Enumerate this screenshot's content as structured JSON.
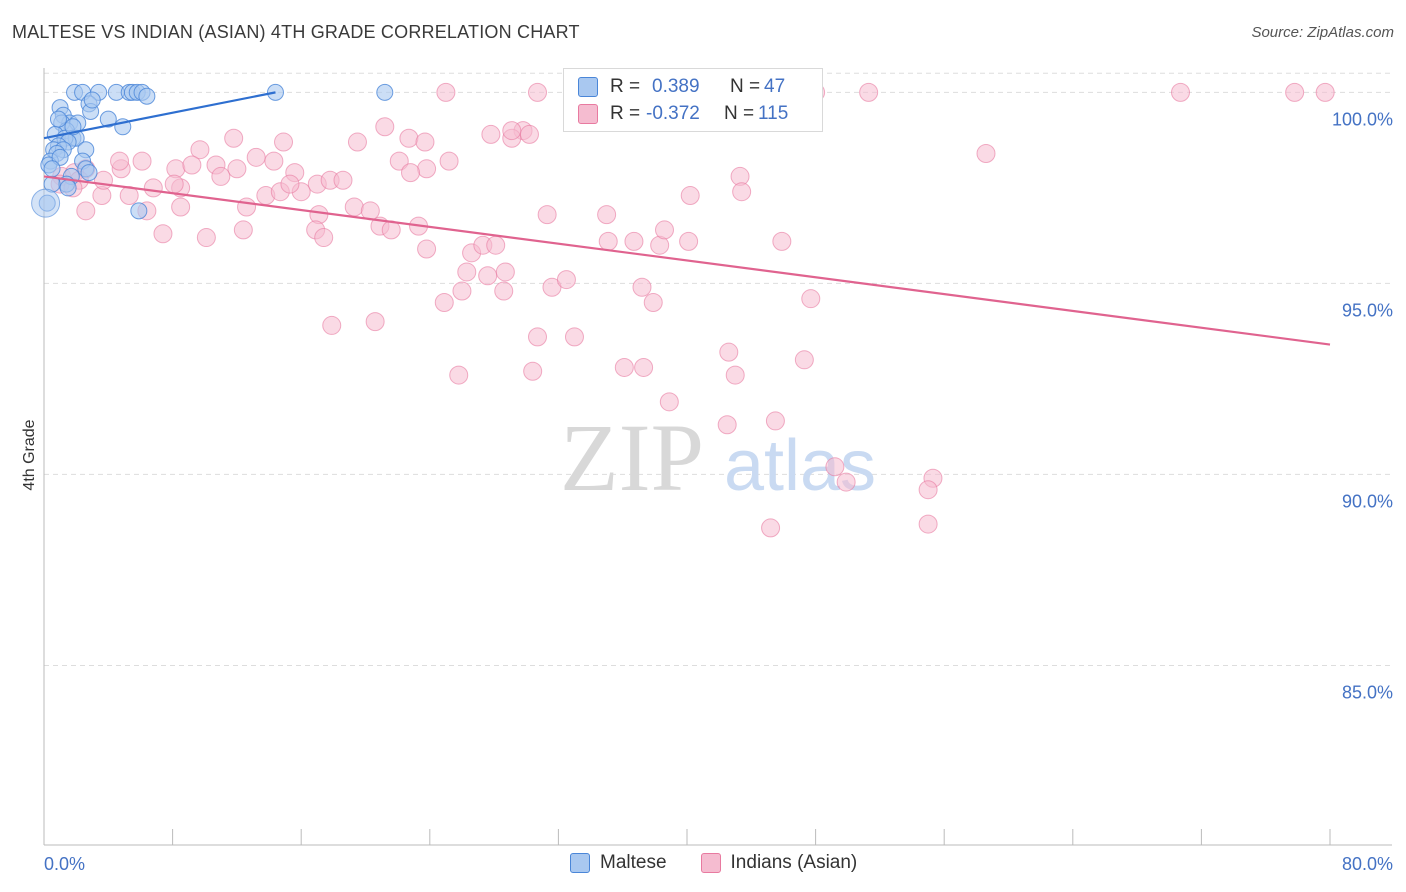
{
  "title": "MALTESE VS INDIAN (ASIAN) 4TH GRADE CORRELATION CHART",
  "source": "Source: ZipAtlas.com",
  "watermark": {
    "zip": "ZIP",
    "atlas": "atlas"
  },
  "colors": {
    "blue": "#4a86d8",
    "blue_fill": "#a9c8f0",
    "blue_line": "#2e6fd0",
    "pink": "#e87aa0",
    "pink_fill": "#f5bcd0",
    "pink_line": "#e0638f",
    "tick_text": "#4472c4",
    "grid": "#dddddd"
  },
  "legend": {
    "rows": [
      {
        "r_label": "R =",
        "r_value": "0.389",
        "n_label": "N =",
        "n_value": "47"
      },
      {
        "r_label": "R =",
        "r_value": "-0.372",
        "n_label": "N =",
        "n_value": "115"
      }
    ]
  },
  "bottom_legend": {
    "series1": "Maltese",
    "series2": "Indians (Asian)"
  },
  "chart_data": {
    "type": "scatter",
    "title": "MALTESE VS INDIAN (ASIAN) 4TH GRADE CORRELATION CHART",
    "xlabel": "",
    "ylabel": "4th Grade",
    "xlim": [
      0,
      80
    ],
    "ylim": [
      80.3,
      100.9
    ],
    "x_tick_labels": [
      "0.0%",
      "80.0%"
    ],
    "y_ticks": [
      100,
      95,
      90,
      85
    ],
    "y_tick_labels": [
      "100.0%",
      "95.0%",
      "90.0%",
      "85.0%"
    ],
    "series": [
      {
        "name": "Maltese",
        "r": 0.389,
        "n": 47,
        "trend": [
          [
            0,
            98.8
          ],
          [
            14.4,
            100.0
          ]
        ],
        "points": [
          [
            1.9,
            100.0
          ],
          [
            2.4,
            100.0
          ],
          [
            3.4,
            100.0
          ],
          [
            4.5,
            100.0
          ],
          [
            5.3,
            100.0
          ],
          [
            5.5,
            100.0
          ],
          [
            5.8,
            100.0
          ],
          [
            6.1,
            100.0
          ],
          [
            6.4,
            99.9
          ],
          [
            14.4,
            100.0
          ],
          [
            21.2,
            100.0
          ],
          [
            1.0,
            99.6
          ],
          [
            2.8,
            99.7
          ],
          [
            2.9,
            99.5
          ],
          [
            4.0,
            99.3
          ],
          [
            1.2,
            99.4
          ],
          [
            1.6,
            99.2
          ],
          [
            1.1,
            99.2
          ],
          [
            2.1,
            99.2
          ],
          [
            4.9,
            99.1
          ],
          [
            1.4,
            99.0
          ],
          [
            0.7,
            98.9
          ],
          [
            1.8,
            98.8
          ],
          [
            2.0,
            98.8
          ],
          [
            1.3,
            98.8
          ],
          [
            1.5,
            98.7
          ],
          [
            0.9,
            98.6
          ],
          [
            2.6,
            98.5
          ],
          [
            0.6,
            98.5
          ],
          [
            1.2,
            98.5
          ],
          [
            0.8,
            98.4
          ],
          [
            2.4,
            98.2
          ],
          [
            0.4,
            98.2
          ],
          [
            0.3,
            98.1
          ],
          [
            2.6,
            98.0
          ],
          [
            2.8,
            97.9
          ],
          [
            1.7,
            97.8
          ],
          [
            1.4,
            97.6
          ],
          [
            0.5,
            97.6
          ],
          [
            1.5,
            97.5
          ],
          [
            0.2,
            97.1
          ],
          [
            5.9,
            96.9
          ],
          [
            0.9,
            99.3
          ],
          [
            1.8,
            99.1
          ],
          [
            1.0,
            98.3
          ],
          [
            0.5,
            98.0
          ],
          [
            3.0,
            99.8
          ]
        ]
      },
      {
        "name": "Indians (Asian)",
        "r": -0.372,
        "n": 115,
        "trend": [
          [
            0,
            97.8
          ],
          [
            80,
            93.4
          ]
        ],
        "points": [
          [
            25.0,
            100.0
          ],
          [
            30.7,
            100.0
          ],
          [
            48.0,
            100.0
          ],
          [
            51.3,
            100.0
          ],
          [
            70.7,
            100.0
          ],
          [
            77.8,
            100.0
          ],
          [
            79.7,
            100.0
          ],
          [
            21.2,
            99.1
          ],
          [
            29.8,
            99.0
          ],
          [
            29.1,
            98.8
          ],
          [
            30.2,
            98.9
          ],
          [
            22.7,
            98.8
          ],
          [
            14.9,
            98.7
          ],
          [
            11.8,
            98.8
          ],
          [
            19.5,
            98.7
          ],
          [
            23.7,
            98.7
          ],
          [
            9.7,
            98.5
          ],
          [
            58.6,
            98.4
          ],
          [
            2.6,
            98.0
          ],
          [
            4.8,
            98.0
          ],
          [
            4.7,
            98.2
          ],
          [
            6.1,
            98.2
          ],
          [
            8.2,
            98.0
          ],
          [
            9.2,
            98.1
          ],
          [
            10.7,
            98.1
          ],
          [
            12.0,
            98.0
          ],
          [
            13.2,
            98.3
          ],
          [
            14.3,
            98.2
          ],
          [
            15.6,
            97.9
          ],
          [
            17.0,
            97.6
          ],
          [
            17.8,
            97.7
          ],
          [
            18.6,
            97.7
          ],
          [
            22.1,
            98.2
          ],
          [
            23.8,
            98.0
          ],
          [
            25.2,
            98.2
          ],
          [
            43.3,
            97.8
          ],
          [
            1.1,
            97.8
          ],
          [
            1.9,
            97.9
          ],
          [
            2.2,
            97.7
          ],
          [
            1.0,
            97.6
          ],
          [
            1.8,
            97.5
          ],
          [
            3.6,
            97.3
          ],
          [
            5.3,
            97.3
          ],
          [
            6.8,
            97.5
          ],
          [
            8.5,
            97.5
          ],
          [
            11.0,
            97.8
          ],
          [
            13.8,
            97.3
          ],
          [
            14.7,
            97.4
          ],
          [
            16.0,
            97.4
          ],
          [
            40.2,
            97.3
          ],
          [
            43.4,
            97.4
          ],
          [
            19.3,
            97.0
          ],
          [
            20.3,
            96.9
          ],
          [
            17.1,
            96.8
          ],
          [
            8.5,
            97.0
          ],
          [
            6.4,
            96.9
          ],
          [
            2.6,
            96.9
          ],
          [
            31.3,
            96.8
          ],
          [
            7.4,
            96.3
          ],
          [
            10.1,
            96.2
          ],
          [
            12.4,
            96.4
          ],
          [
            16.9,
            96.4
          ],
          [
            17.4,
            96.2
          ],
          [
            20.9,
            96.5
          ],
          [
            21.6,
            96.4
          ],
          [
            23.3,
            96.5
          ],
          [
            23.8,
            95.9
          ],
          [
            26.6,
            95.8
          ],
          [
            27.3,
            96.0
          ],
          [
            28.1,
            96.0
          ],
          [
            35.1,
            96.1
          ],
          [
            36.7,
            96.1
          ],
          [
            38.3,
            96.0
          ],
          [
            38.6,
            96.4
          ],
          [
            40.1,
            96.1
          ],
          [
            26.3,
            95.3
          ],
          [
            27.6,
            95.2
          ],
          [
            28.7,
            95.3
          ],
          [
            26.0,
            94.8
          ],
          [
            28.6,
            94.8
          ],
          [
            31.6,
            94.9
          ],
          [
            32.5,
            95.1
          ],
          [
            37.2,
            94.9
          ],
          [
            24.9,
            94.5
          ],
          [
            37.9,
            94.5
          ],
          [
            47.7,
            94.6
          ],
          [
            17.9,
            93.9
          ],
          [
            20.6,
            94.0
          ],
          [
            30.7,
            93.6
          ],
          [
            33.0,
            93.6
          ],
          [
            36.1,
            92.8
          ],
          [
            37.3,
            92.8
          ],
          [
            43.0,
            92.6
          ],
          [
            47.3,
            93.0
          ],
          [
            25.8,
            92.6
          ],
          [
            30.4,
            92.7
          ],
          [
            42.6,
            93.2
          ],
          [
            38.9,
            91.9
          ],
          [
            42.5,
            91.3
          ],
          [
            45.5,
            91.4
          ],
          [
            49.2,
            90.2
          ],
          [
            49.9,
            89.8
          ],
          [
            55.3,
            89.9
          ],
          [
            55.0,
            89.6
          ],
          [
            45.2,
            88.6
          ],
          [
            55.0,
            88.7
          ],
          [
            8.1,
            97.6
          ],
          [
            12.6,
            97.0
          ],
          [
            15.3,
            97.6
          ],
          [
            3.7,
            97.7
          ],
          [
            27.8,
            98.9
          ],
          [
            29.1,
            99.0
          ],
          [
            35.0,
            96.8
          ],
          [
            22.8,
            97.9
          ],
          [
            45.9,
            96.1
          ]
        ]
      }
    ]
  }
}
